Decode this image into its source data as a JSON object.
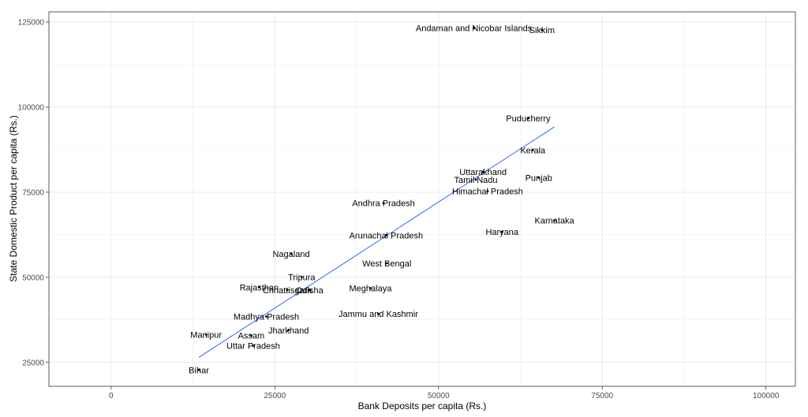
{
  "chart_data": {
    "type": "scatter",
    "title": "",
    "xlabel": "Bank Deposits per capita (Rs.)",
    "ylabel": "State Domestic Product per capita (Rs.)",
    "xlim": [
      -9500,
      104500
    ],
    "ylim": [
      18000,
      128000
    ],
    "x_ticks": [
      0,
      25000,
      50000,
      75000,
      100000
    ],
    "y_ticks": [
      25000,
      50000,
      75000,
      100000,
      125000
    ],
    "x_tick_labels": [
      "0",
      "25000",
      "50000",
      "75000",
      "100000"
    ],
    "y_tick_labels": [
      "25000",
      "50000",
      "75000",
      "100000",
      "125000"
    ],
    "grid": true,
    "points": [
      {
        "label": "Andaman and Nicobar Islands",
        "x": 55400,
        "y": 123200
      },
      {
        "label": "Sikkim",
        "x": 65800,
        "y": 122700
      },
      {
        "label": "Puducherry",
        "x": 63700,
        "y": 96700
      },
      {
        "label": "Kerala",
        "x": 64400,
        "y": 87400
      },
      {
        "label": "Uttarakhand",
        "x": 56800,
        "y": 81000
      },
      {
        "label": "Tamil Nadu",
        "x": 55700,
        "y": 78700
      },
      {
        "label": "Punjab",
        "x": 65300,
        "y": 79300
      },
      {
        "label": "Himachal Pradesh",
        "x": 57500,
        "y": 75300
      },
      {
        "label": "Andhra Pradesh",
        "x": 41600,
        "y": 71800
      },
      {
        "label": "Karnataka",
        "x": 67700,
        "y": 66700
      },
      {
        "label": "Haryana",
        "x": 59700,
        "y": 63400
      },
      {
        "label": "Arunachal Pradesh",
        "x": 42000,
        "y": 62400
      },
      {
        "label": "Nagaland",
        "x": 27500,
        "y": 56900
      },
      {
        "label": "West Bengal",
        "x": 42100,
        "y": 54100
      },
      {
        "label": "Tripura",
        "x": 29100,
        "y": 50100
      },
      {
        "label": "Rajasthan",
        "x": 22600,
        "y": 47100
      },
      {
        "label": "Chhattisgarh",
        "x": 26900,
        "y": 46300
      },
      {
        "label": "Odisha",
        "x": 30300,
        "y": 46200
      },
      {
        "label": "Meghalaya",
        "x": 39600,
        "y": 46800
      },
      {
        "label": "Madhya Pradesh",
        "x": 23700,
        "y": 38500
      },
      {
        "label": "Jammu and Kashmir",
        "x": 40800,
        "y": 39300
      },
      {
        "label": "Jharkhand",
        "x": 27100,
        "y": 34500
      },
      {
        "label": "Manipur",
        "x": 14500,
        "y": 33200
      },
      {
        "label": "Assam",
        "x": 21400,
        "y": 32900
      },
      {
        "label": "Uttar Pradesh",
        "x": 21700,
        "y": 29900
      },
      {
        "label": "Bihar",
        "x": 13400,
        "y": 22800
      }
    ],
    "trend_line": {
      "x": [
        13400,
        67700
      ],
      "y": [
        26500,
        94200
      ]
    },
    "colors": {
      "trend": "#3366ff",
      "grid": "#ebebeb",
      "panel_border": "#333333",
      "point": "#000000"
    }
  }
}
